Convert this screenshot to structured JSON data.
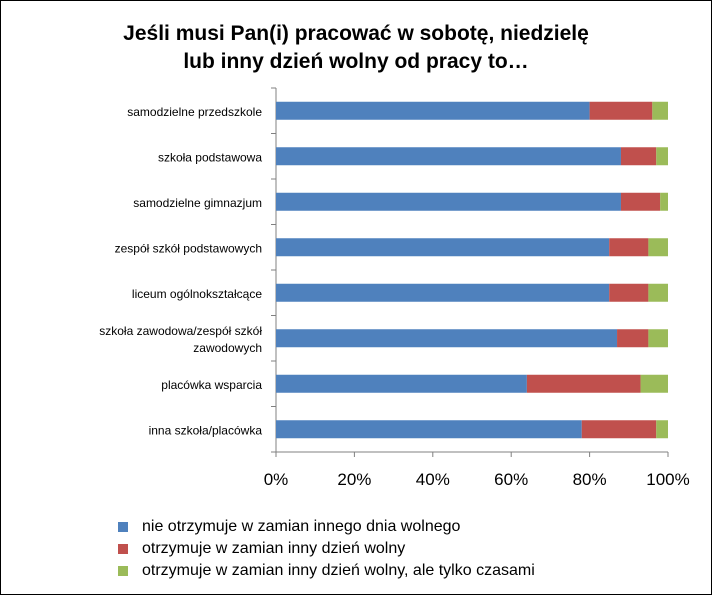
{
  "chart_data": {
    "type": "bar",
    "orientation": "horizontal",
    "stacked": true,
    "title": [
      "Jeśli musi Pan(i) pracować w sobotę, niedzielę",
      "lub inny dzień wolny od pracy to…"
    ],
    "categories": [
      [
        "samodzielne przedszkole"
      ],
      [
        "szkoła podstawowa"
      ],
      [
        "samodzielne gimnazjum"
      ],
      [
        "zespół szkół podstawowych"
      ],
      [
        "liceum ogólnokształcące"
      ],
      [
        "szkoła zawodowa/zespół szkół",
        "zawodowych"
      ],
      [
        "placówka wsparcia"
      ],
      [
        "inna szkoła/placówka"
      ]
    ],
    "series": [
      {
        "name": "nie otrzymuje w zamian innego dnia wolnego",
        "color": "#4F81BD",
        "values": [
          80,
          88,
          88,
          85,
          85,
          87,
          64,
          78
        ]
      },
      {
        "name": "otrzymuje w zamian inny dzień wolny",
        "color": "#C0504D",
        "values": [
          16,
          9,
          10,
          10,
          10,
          8,
          29,
          19
        ]
      },
      {
        "name": "otrzymuje w zamian inny dzień wolny, ale tylko czasami",
        "color": "#9BBB59",
        "values": [
          4,
          3,
          2,
          5,
          5,
          5,
          7,
          3
        ]
      }
    ],
    "xticks": [
      "0%",
      "20%",
      "40%",
      "60%",
      "80%",
      "100%"
    ],
    "xlim": [
      0,
      100
    ],
    "legend": "bottom"
  }
}
